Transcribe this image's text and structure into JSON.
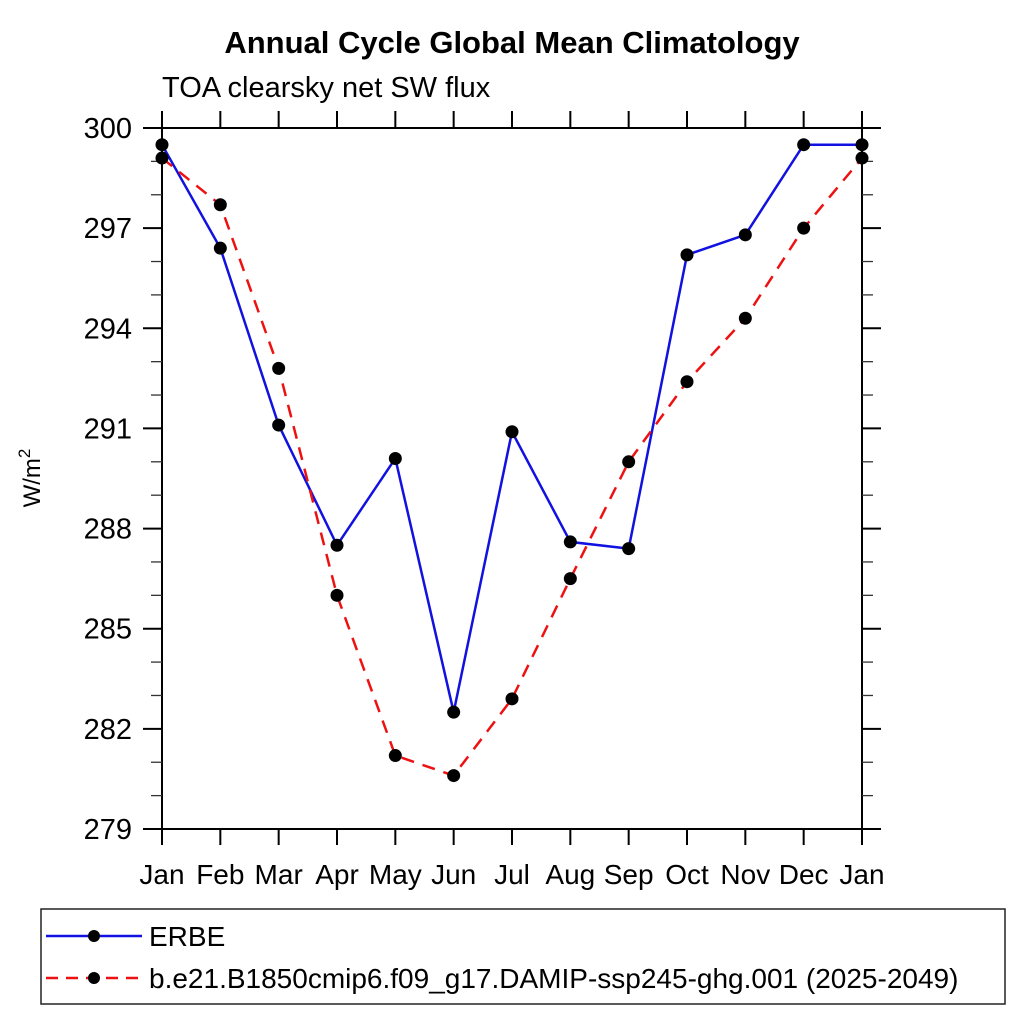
{
  "page": {
    "background_color": "#ffffff"
  },
  "chart_data": {
    "type": "line",
    "title": "Annual Cycle Global Mean Climatology",
    "subtitle": "TOA clearsky net SW flux",
    "ylabel_base": "W/m",
    "ylabel_exponent": "2",
    "x_tick_labels": [
      "Jan",
      "Feb",
      "Mar",
      "Apr",
      "May",
      "Jun",
      "Jul",
      "Aug",
      "Sep",
      "Oct",
      "Nov",
      "Dec",
      "Jan"
    ],
    "ylim": [
      279,
      300
    ],
    "ytick_major_step": 3,
    "ytick_minor_step": 1,
    "ytick_major_labels": [
      "279",
      "282",
      "285",
      "288",
      "291",
      "294",
      "297",
      "300"
    ],
    "grid": false,
    "legend_position": "bottom-box",
    "axis_color": "#000000",
    "series": [
      {
        "name": "ERBE",
        "line_color": "#1111e0",
        "line_style": "solid",
        "marker": "filled-circle",
        "marker_color": "#000000",
        "values": [
          299.5,
          296.4,
          291.1,
          287.5,
          290.1,
          282.5,
          290.9,
          287.6,
          287.4,
          296.2,
          296.8,
          299.5,
          299.5
        ]
      },
      {
        "name": "b.e21.B1850cmip6.f09_g17.DAMIP-ssp245-ghg.001 (2025-2049)",
        "line_color": "#ee1111",
        "line_style": "dashed",
        "marker": "filled-circle",
        "marker_color": "#000000",
        "values": [
          299.1,
          297.7,
          292.8,
          286.0,
          281.2,
          280.6,
          282.9,
          286.5,
          290.0,
          292.4,
          294.3,
          297.0,
          299.1
        ]
      }
    ]
  }
}
